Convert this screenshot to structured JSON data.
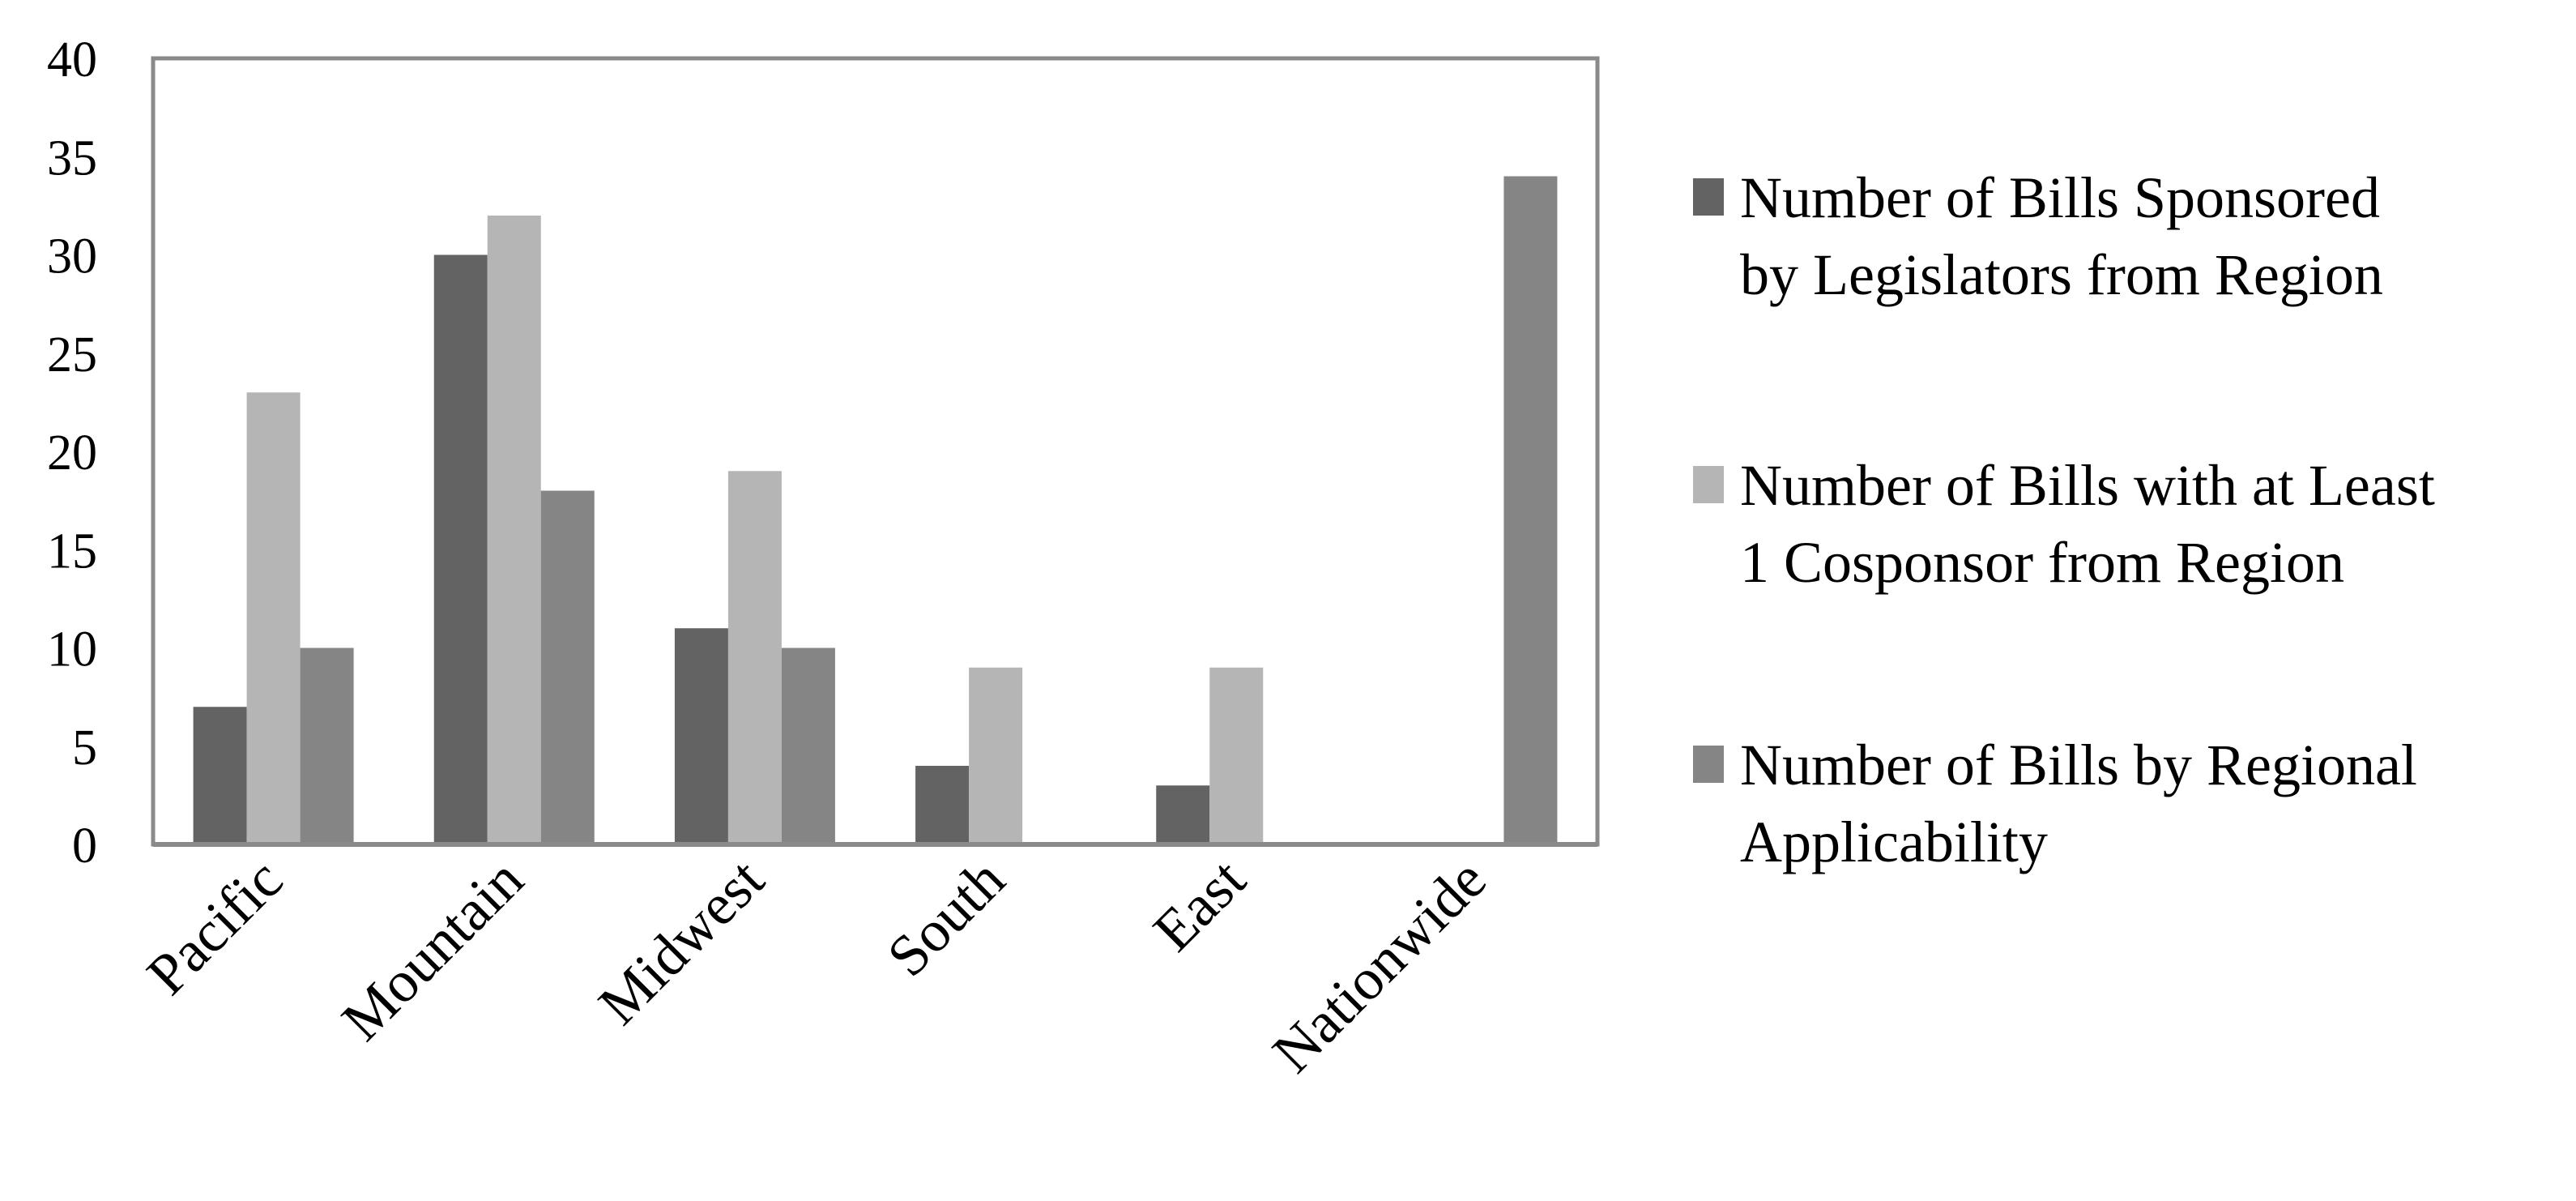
{
  "chart_data": {
    "type": "bar",
    "categories": [
      "Pacific",
      "Mountain",
      "Midwest",
      "South",
      "East",
      "Nationwide"
    ],
    "series": [
      {
        "name": "Number of Bills Sponsored by Legislators from Region",
        "legend_lines": [
          "Number of Bills Sponsored",
          "by Legislators from Region"
        ],
        "color": "#636363",
        "values": [
          7,
          30,
          11,
          4,
          3,
          0
        ]
      },
      {
        "name": "Number of Bills with at Least 1 Cosponsor from Region",
        "legend_lines": [
          "Number of Bills with at Least",
          "1 Cosponsor from Region"
        ],
        "color": "#b5b5b5",
        "values": [
          23,
          32,
          19,
          9,
          9,
          0
        ]
      },
      {
        "name": "Number of Bills by Regional Applicability",
        "legend_lines": [
          "Number of Bills by Regional",
          "Applicability"
        ],
        "color": "#858585",
        "values": [
          10,
          18,
          10,
          0,
          0,
          34
        ]
      }
    ],
    "y_ticks": [
      0,
      5,
      10,
      15,
      20,
      25,
      30,
      35,
      40
    ],
    "ylim": [
      0,
      40
    ],
    "title": "",
    "xlabel": "",
    "ylabel": "",
    "grid": false,
    "legend_position": "right",
    "x_tick_rotation": "diagonal"
  }
}
